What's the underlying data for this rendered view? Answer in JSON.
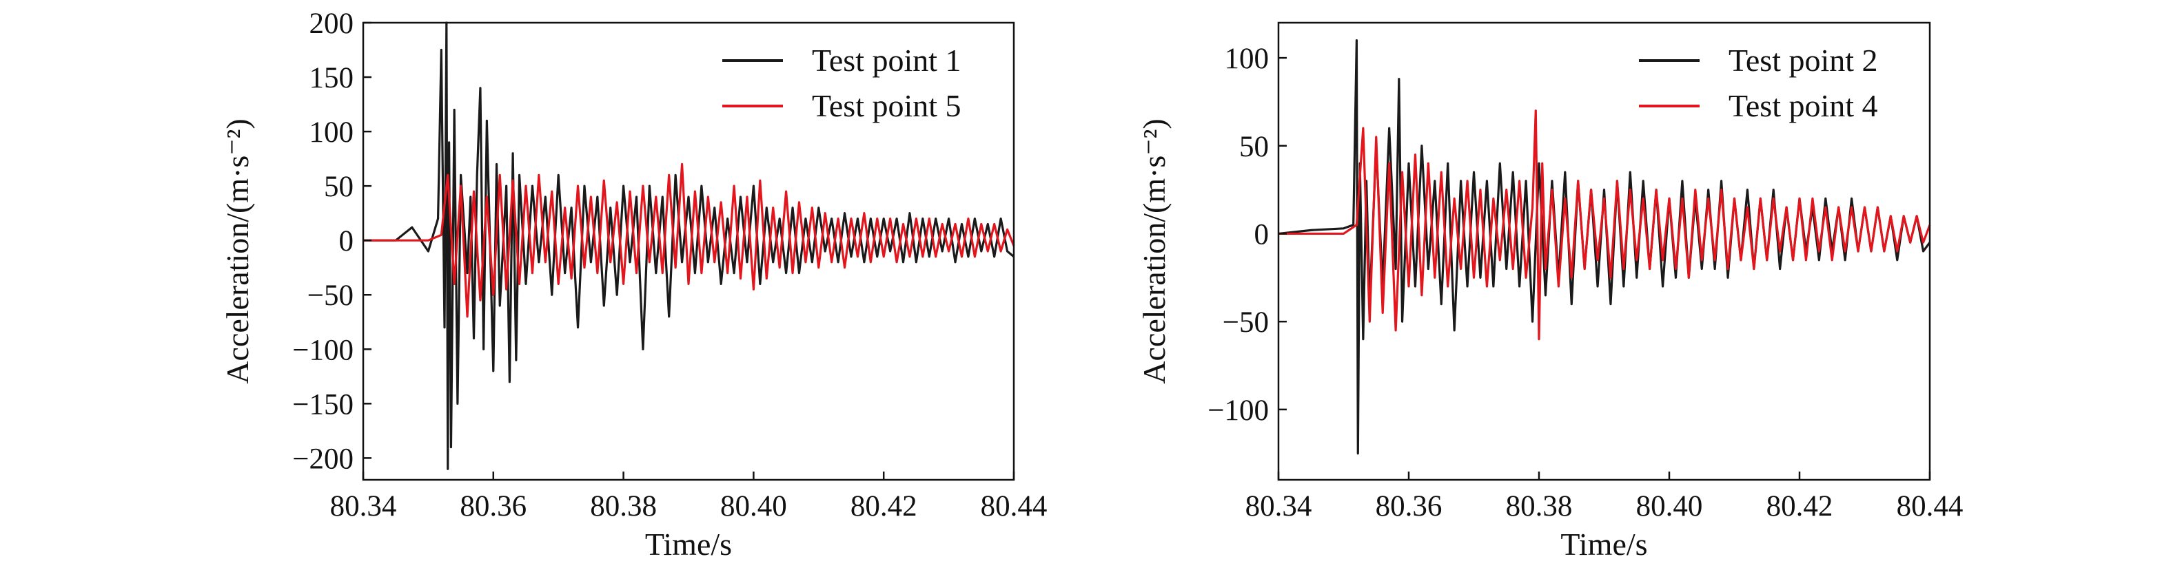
{
  "chart_data": [
    {
      "type": "line",
      "xlabel": "Time/s",
      "ylabel": "Acceleration/(m·s⁻²)",
      "xlim": [
        80.34,
        80.44
      ],
      "ylim": [
        -220,
        200
      ],
      "xticks": [
        80.34,
        80.36,
        80.38,
        80.4,
        80.42,
        80.44
      ],
      "xtick_labels": [
        "80.34",
        "80.36",
        "80.38",
        "80.40",
        "80.42",
        "80.44"
      ],
      "yticks": [
        200,
        150,
        100,
        50,
        0,
        -50,
        -100,
        -150,
        -200
      ],
      "ytick_labels": [
        "200",
        "150",
        "100",
        "50",
        "0",
        "−50",
        "−100",
        "−150",
        "−200"
      ],
      "grid": false,
      "legend_position": "top-right",
      "series": [
        {
          "name": "Test point 1",
          "color": "#1a1a1a",
          "x": [
            80.34,
            80.345,
            80.3475,
            80.35,
            80.3515,
            80.352,
            80.3525,
            80.3528,
            80.353,
            80.3532,
            80.3535,
            80.354,
            80.3545,
            80.355,
            80.356,
            80.3565,
            80.357,
            80.3575,
            80.358,
            80.3585,
            80.359,
            80.36,
            80.3605,
            80.361,
            80.362,
            80.3625,
            80.363,
            80.3635,
            80.364,
            80.365,
            80.366,
            80.367,
            80.368,
            80.369,
            80.37,
            80.371,
            80.372,
            80.373,
            80.374,
            80.375,
            80.376,
            80.377,
            80.378,
            80.379,
            80.38,
            80.381,
            80.382,
            80.383,
            80.384,
            80.385,
            80.386,
            80.387,
            80.388,
            80.389,
            80.39,
            80.391,
            80.392,
            80.393,
            80.394,
            80.395,
            80.396,
            80.397,
            80.398,
            80.399,
            80.4,
            80.401,
            80.402,
            80.403,
            80.404,
            80.405,
            80.406,
            80.407,
            80.408,
            80.409,
            80.41,
            80.411,
            80.412,
            80.413,
            80.414,
            80.415,
            80.416,
            80.417,
            80.418,
            80.419,
            80.42,
            80.421,
            80.422,
            80.423,
            80.424,
            80.425,
            80.426,
            80.427,
            80.428,
            80.429,
            80.43,
            80.431,
            80.432,
            80.433,
            80.434,
            80.435,
            80.436,
            80.437,
            80.438,
            80.439,
            80.44
          ],
          "y": [
            0,
            0,
            12,
            -10,
            20,
            175,
            -80,
            200,
            -210,
            90,
            -190,
            120,
            -150,
            60,
            -30,
            40,
            -90,
            60,
            140,
            -100,
            110,
            -120,
            70,
            -60,
            50,
            -130,
            80,
            -110,
            60,
            -40,
            50,
            -20,
            40,
            -50,
            60,
            -30,
            30,
            -80,
            50,
            -20,
            40,
            -60,
            30,
            -50,
            50,
            -20,
            40,
            -100,
            50,
            -30,
            40,
            -70,
            60,
            -20,
            40,
            -30,
            50,
            -20,
            30,
            -40,
            20,
            -30,
            40,
            -20,
            50,
            -40,
            30,
            -20,
            20,
            -30,
            30,
            -30,
            20,
            -20,
            30,
            -10,
            20,
            -20,
            25,
            -15,
            20,
            -20,
            20,
            -15,
            20,
            -10,
            20,
            -20,
            25,
            -20,
            20,
            -15,
            20,
            -10,
            20,
            -20,
            15,
            -15,
            20,
            -10,
            15,
            -15,
            20,
            -10,
            -15
          ]
        },
        {
          "name": "Test point 5",
          "color": "#e3161d",
          "x": [
            80.34,
            80.35,
            80.352,
            80.353,
            80.354,
            80.355,
            80.356,
            80.357,
            80.358,
            80.359,
            80.36,
            80.361,
            80.362,
            80.363,
            80.364,
            80.365,
            80.366,
            80.367,
            80.368,
            80.369,
            80.37,
            80.371,
            80.372,
            80.373,
            80.374,
            80.375,
            80.376,
            80.377,
            80.378,
            80.379,
            80.38,
            80.381,
            80.382,
            80.383,
            80.384,
            80.385,
            80.386,
            80.387,
            80.388,
            80.389,
            80.39,
            80.391,
            80.392,
            80.393,
            80.394,
            80.395,
            80.396,
            80.397,
            80.398,
            80.399,
            80.4,
            80.401,
            80.402,
            80.403,
            80.404,
            80.405,
            80.406,
            80.407,
            80.408,
            80.409,
            80.41,
            80.411,
            80.412,
            80.413,
            80.414,
            80.415,
            80.416,
            80.417,
            80.418,
            80.419,
            80.42,
            80.421,
            80.422,
            80.423,
            80.424,
            80.425,
            80.426,
            80.427,
            80.428,
            80.429,
            80.43,
            80.431,
            80.432,
            80.433,
            80.434,
            80.435,
            80.436,
            80.437,
            80.438,
            80.439,
            80.44
          ],
          "y": [
            0,
            0,
            5,
            60,
            -40,
            50,
            -70,
            45,
            -55,
            40,
            -50,
            60,
            -45,
            55,
            -40,
            50,
            -30,
            60,
            -20,
            45,
            -40,
            30,
            -35,
            50,
            -25,
            40,
            -30,
            55,
            -20,
            35,
            -40,
            45,
            -30,
            50,
            -20,
            40,
            -30,
            60,
            -25,
            70,
            -40,
            45,
            -30,
            40,
            -20,
            35,
            -30,
            50,
            -35,
            40,
            -45,
            55,
            -35,
            30,
            -25,
            45,
            -30,
            35,
            -20,
            30,
            -25,
            25,
            -20,
            20,
            -25,
            20,
            -15,
            25,
            -20,
            20,
            -15,
            20,
            -20,
            15,
            -15,
            20,
            -15,
            20,
            -15,
            15,
            -10,
            15,
            -15,
            20,
            -15,
            15,
            -10,
            15,
            -10,
            10,
            -5
          ]
        }
      ]
    },
    {
      "type": "line",
      "xlabel": "Time/s",
      "ylabel": "Acceleration/(m·s⁻²)",
      "xlim": [
        80.34,
        80.44
      ],
      "ylim": [
        -140,
        120
      ],
      "xticks": [
        80.34,
        80.36,
        80.38,
        80.4,
        80.42,
        80.44
      ],
      "xtick_labels": [
        "80.34",
        "80.36",
        "80.38",
        "80.40",
        "80.42",
        "80.44"
      ],
      "yticks": [
        100,
        50,
        0,
        -50,
        -100
      ],
      "ytick_labels": [
        "100",
        "50",
        "0",
        "−50",
        "−100"
      ],
      "grid": false,
      "legend_position": "top-right",
      "series": [
        {
          "name": "Test point 2",
          "color": "#1a1a1a",
          "x": [
            80.34,
            80.345,
            80.35,
            80.3515,
            80.352,
            80.3522,
            80.3525,
            80.353,
            80.3535,
            80.354,
            80.355,
            80.356,
            80.357,
            80.358,
            80.3585,
            80.359,
            80.36,
            80.361,
            80.362,
            80.363,
            80.364,
            80.365,
            80.366,
            80.367,
            80.368,
            80.369,
            80.37,
            80.371,
            80.372,
            80.373,
            80.374,
            80.375,
            80.376,
            80.377,
            80.378,
            80.379,
            80.38,
            80.381,
            80.382,
            80.383,
            80.384,
            80.385,
            80.386,
            80.387,
            80.388,
            80.389,
            80.39,
            80.391,
            80.392,
            80.393,
            80.394,
            80.395,
            80.396,
            80.397,
            80.398,
            80.399,
            80.4,
            80.401,
            80.402,
            80.403,
            80.404,
            80.405,
            80.406,
            80.407,
            80.408,
            80.409,
            80.41,
            80.411,
            80.412,
            80.413,
            80.414,
            80.415,
            80.416,
            80.417,
            80.418,
            80.419,
            80.42,
            80.421,
            80.422,
            80.423,
            80.424,
            80.425,
            80.426,
            80.427,
            80.428,
            80.429,
            80.43,
            80.431,
            80.432,
            80.433,
            80.434,
            80.435,
            80.436,
            80.437,
            80.438,
            80.439,
            80.44
          ],
          "y": [
            0,
            2,
            3,
            5,
            110,
            -125,
            40,
            -60,
            30,
            -40,
            50,
            -30,
            60,
            -20,
            88,
            -50,
            40,
            -30,
            50,
            -20,
            30,
            -40,
            40,
            -55,
            30,
            -30,
            35,
            -25,
            30,
            -30,
            40,
            -20,
            35,
            -30,
            30,
            -50,
            40,
            -35,
            30,
            -25,
            35,
            -40,
            30,
            -20,
            25,
            -30,
            25,
            -40,
            30,
            -30,
            35,
            -25,
            30,
            -20,
            25,
            -30,
            20,
            -25,
            30,
            -25,
            20,
            -20,
            25,
            -20,
            30,
            -25,
            20,
            -15,
            25,
            -20,
            20,
            -15,
            25,
            -20,
            15,
            -15,
            20,
            -10,
            15,
            -15,
            20,
            -10,
            15,
            -15,
            20,
            -10,
            15,
            -10,
            15,
            -10,
            10,
            -15,
            10,
            -5,
            10,
            -10,
            -5
          ]
        },
        {
          "name": "Test point 4",
          "color": "#e3161d",
          "x": [
            80.34,
            80.35,
            80.352,
            80.353,
            80.354,
            80.355,
            80.356,
            80.357,
            80.358,
            80.359,
            80.36,
            80.361,
            80.362,
            80.363,
            80.364,
            80.365,
            80.366,
            80.367,
            80.368,
            80.369,
            80.37,
            80.371,
            80.372,
            80.373,
            80.374,
            80.375,
            80.376,
            80.377,
            80.378,
            80.379,
            80.3795,
            80.38,
            80.3805,
            80.381,
            80.382,
            80.383,
            80.384,
            80.385,
            80.386,
            80.387,
            80.388,
            80.389,
            80.39,
            80.391,
            80.392,
            80.393,
            80.394,
            80.395,
            80.396,
            80.397,
            80.398,
            80.399,
            80.4,
            80.401,
            80.402,
            80.403,
            80.404,
            80.405,
            80.406,
            80.407,
            80.408,
            80.409,
            80.41,
            80.411,
            80.412,
            80.413,
            80.414,
            80.415,
            80.416,
            80.417,
            80.418,
            80.419,
            80.42,
            80.421,
            80.422,
            80.423,
            80.424,
            80.425,
            80.426,
            80.427,
            80.428,
            80.429,
            80.43,
            80.431,
            80.432,
            80.433,
            80.434,
            80.435,
            80.436,
            80.437,
            80.438,
            80.439,
            80.44
          ],
          "y": [
            0,
            0,
            5,
            60,
            -50,
            55,
            -45,
            40,
            -55,
            35,
            -30,
            45,
            -35,
            40,
            -25,
            35,
            -30,
            20,
            -20,
            30,
            -25,
            25,
            -30,
            20,
            -15,
            25,
            -20,
            30,
            -25,
            15,
            70,
            -60,
            40,
            -20,
            25,
            -30,
            20,
            -25,
            30,
            -20,
            25,
            -15,
            20,
            -25,
            30,
            -20,
            25,
            -15,
            20,
            -20,
            25,
            -15,
            20,
            -20,
            20,
            -25,
            25,
            -15,
            20,
            -15,
            25,
            -20,
            20,
            -15,
            15,
            -20,
            20,
            -15,
            20,
            -10,
            15,
            -15,
            20,
            -15,
            20,
            -10,
            15,
            -15,
            15,
            -10,
            15,
            -10,
            15,
            -10,
            15,
            -10,
            10,
            -10,
            10,
            -5,
            10,
            -5,
            5
          ]
        }
      ]
    }
  ]
}
